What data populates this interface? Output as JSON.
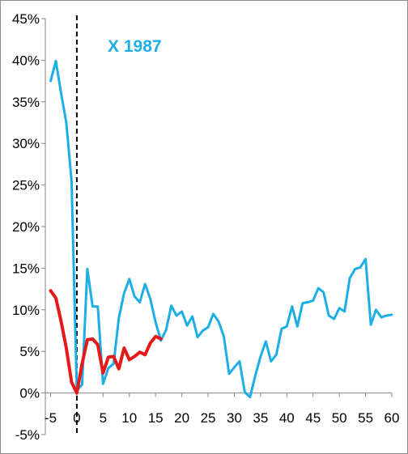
{
  "chart_data": {
    "type": "line",
    "title": "",
    "xlabel": "",
    "ylabel": "",
    "xlim": [
      -6,
      60
    ],
    "ylim": [
      -5,
      45
    ],
    "grid": false,
    "legend": "none",
    "x_ticks": [
      -5,
      0,
      5,
      10,
      15,
      20,
      25,
      30,
      35,
      40,
      45,
      50,
      55,
      60
    ],
    "x_tick_labels": [
      "-5",
      "0",
      "5",
      "10",
      "15",
      "20",
      "25",
      "30",
      "35",
      "40",
      "45",
      "50",
      "55",
      "60"
    ],
    "y_ticks": [
      -5,
      0,
      5,
      10,
      15,
      20,
      25,
      30,
      35,
      40,
      45
    ],
    "y_tick_labels": [
      "-5%",
      "0%",
      "5%",
      "10%",
      "15%",
      "20%",
      "25%",
      "30%",
      "35%",
      "40%",
      "45%"
    ],
    "reference_line": {
      "x": 0,
      "style": "dashed",
      "color": "#000000"
    },
    "annotation": {
      "text": "X 1987",
      "color": "#1eaee6"
    },
    "series": [
      {
        "color": "#1eaee6",
        "x": [
          -5,
          -4,
          -3,
          -2,
          -1,
          0,
          1,
          2,
          3,
          4,
          5,
          6,
          7,
          8,
          9,
          10,
          11,
          12,
          13,
          14,
          15,
          16,
          17,
          18,
          19,
          20,
          21,
          22,
          23,
          24,
          25,
          26,
          27,
          28,
          29,
          30,
          31,
          32,
          33,
          34,
          35,
          36,
          37,
          38,
          39,
          40,
          41,
          42,
          43,
          44,
          45,
          46,
          47,
          48,
          49,
          50,
          51,
          52,
          53,
          54,
          55,
          56,
          57,
          58,
          59,
          60
        ],
        "y": [
          37.5,
          39.9,
          36.0,
          32.5,
          25.5,
          0.3,
          1.0,
          14.9,
          10.4,
          10.4,
          1.1,
          3.0,
          3.5,
          9.0,
          12.0,
          13.7,
          11.6,
          10.9,
          13.1,
          11.3,
          8.5,
          6.3,
          7.6,
          10.5,
          9.3,
          9.8,
          8.1,
          9.2,
          6.7,
          7.5,
          7.9,
          9.5,
          8.6,
          6.8,
          2.3,
          3.1,
          3.8,
          0.1,
          -0.5,
          2.1,
          4.4,
          6.2,
          3.8,
          4.6,
          7.7,
          8.0,
          10.4,
          8.0,
          10.8,
          10.9,
          11.1,
          12.6,
          12.1,
          9.3,
          8.9,
          10.2,
          9.8,
          13.8,
          14.9,
          15.1,
          16.1,
          8.2,
          10.0,
          9.1,
          9.3,
          9.4
        ]
      },
      {
        "color": "#e61919",
        "x": [
          -5,
          -4,
          -3,
          -2,
          -1,
          0,
          1,
          2,
          3,
          4,
          5,
          6,
          7,
          8,
          9,
          10,
          11,
          12,
          13,
          14,
          15,
          16
        ],
        "y": [
          12.3,
          11.4,
          8.6,
          5.4,
          1.3,
          0.0,
          3.5,
          6.4,
          6.5,
          5.8,
          2.4,
          4.3,
          4.4,
          2.9,
          5.4,
          4.0,
          4.4,
          4.9,
          4.6,
          6.0,
          6.8,
          6.5
        ]
      }
    ]
  }
}
